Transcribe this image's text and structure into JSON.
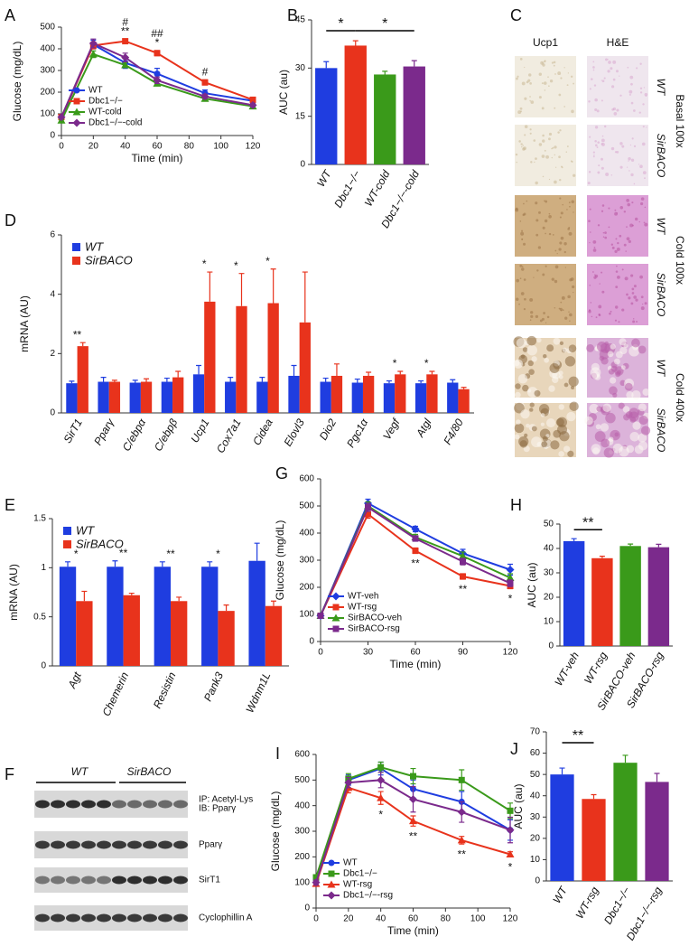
{
  "chart_data": [
    {
      "type": "line",
      "panel": "A",
      "ylabel": "Glucose (mg/dL)",
      "xlabel": "Time (min)",
      "x": [
        0,
        20,
        40,
        60,
        90,
        120
      ],
      "xlim": [
        0,
        120
      ],
      "xticks": [
        0,
        20,
        40,
        60,
        80,
        100,
        120
      ],
      "ylim": [
        0,
        500
      ],
      "yticks": [
        0,
        100,
        200,
        300,
        400,
        500
      ],
      "legend": "lower left",
      "significance_position": "above",
      "series": [
        {
          "name": "WT",
          "color": "#1f3de0",
          "marker": "circle",
          "values": [
            80,
            420,
            335,
            285,
            195,
            160
          ],
          "errors": [
            5,
            20,
            25,
            25,
            15,
            10
          ]
        },
        {
          "name": "Dbc1−/−",
          "color": "#e8331c",
          "marker": "square",
          "values": [
            85,
            415,
            435,
            380,
            245,
            165
          ],
          "errors": [
            5,
            15,
            10,
            12,
            12,
            10
          ]
        },
        {
          "name": "WT-cold",
          "color": "#3a9a1a",
          "marker": "triangle",
          "values": [
            70,
            375,
            325,
            240,
            170,
            135
          ],
          "errors": [
            5,
            15,
            12,
            10,
            8,
            8
          ]
        },
        {
          "name": "Dbc1−/−-cold",
          "color": "#7b2a8c",
          "marker": "diamond",
          "values": [
            85,
            425,
            360,
            255,
            180,
            140
          ],
          "errors": [
            5,
            20,
            20,
            15,
            10,
            8
          ]
        }
      ],
      "significance": [
        null,
        null,
        [
          "#",
          "**"
        ],
        [
          "##",
          "*"
        ],
        [
          "#"
        ],
        null
      ]
    },
    {
      "type": "bar",
      "panel": "B",
      "ylabel": "AUC (au)",
      "categories": [
        "WT",
        "Dbc1−/−",
        "WT-cold",
        "Dbc1−/−-cold"
      ],
      "ylim": [
        0,
        45
      ],
      "yticks": [
        0,
        15,
        30,
        45
      ],
      "series": [
        {
          "colors": [
            "#1f3de0",
            "#e8331c",
            "#3a9a1a",
            "#7b2a8c"
          ],
          "values": [
            30,
            37,
            28,
            30.5
          ],
          "errors": [
            2,
            1.5,
            1,
            1.8
          ]
        }
      ],
      "comparisons": [
        {
          "text": "*",
          "between": [
            "WT",
            "Dbc1−/−"
          ]
        },
        {
          "text": "*",
          "between": [
            "Dbc1−/−",
            "Dbc1−/−-cold"
          ]
        }
      ]
    },
    {
      "type": "bar",
      "panel": "D",
      "ylabel": "mRNA (AU)",
      "categories": [
        "SirT1",
        "Pparγ",
        "C/ebpα",
        "C/ebpβ",
        "Ucp1",
        "Cox7a1",
        "Cidea",
        "Elovl3",
        "Dio2",
        "Pgc1α",
        "Vegf",
        "Atgl",
        "F4/80"
      ],
      "ylim": [
        0,
        6
      ],
      "yticks": [
        0,
        2,
        4,
        6
      ],
      "legend": "upper left",
      "series": [
        {
          "name": "WT",
          "color": "#1f3de0",
          "values": [
            1,
            1.05,
            1.02,
            1.05,
            1.3,
            1.05,
            1.05,
            1.25,
            1.05,
            1.02,
            1,
            1,
            1.02
          ],
          "errors": [
            0.07,
            0.15,
            0.08,
            0.12,
            0.3,
            0.15,
            0.15,
            0.35,
            0.12,
            0.12,
            0.08,
            0.08,
            0.1
          ]
        },
        {
          "name": "SirBACO",
          "color": "#e8331c",
          "values": [
            2.25,
            1.05,
            1.05,
            1.2,
            3.75,
            3.6,
            3.7,
            3.05,
            1.25,
            1.25,
            1.3,
            1.3,
            0.8
          ],
          "errors": [
            0.12,
            0.05,
            0.1,
            0.2,
            1,
            1.1,
            1.15,
            1.7,
            0.4,
            0.12,
            0.1,
            0.1,
            0.06
          ]
        }
      ],
      "significance": [
        [
          "**"
        ],
        null,
        null,
        null,
        [
          "*"
        ],
        [
          "*"
        ],
        [
          "*"
        ],
        null,
        null,
        null,
        [
          "*"
        ],
        [
          "*"
        ],
        null
      ]
    },
    {
      "type": "bar",
      "panel": "E",
      "ylabel": "mRNA (AU)",
      "categories": [
        "Agt",
        "Chemerin",
        "Resistin",
        "Pank3",
        "Wdnm1L"
      ],
      "ylim": [
        0,
        1.5
      ],
      "yticks": [
        0,
        0.5,
        1,
        1.5
      ],
      "legend": "upper left",
      "series": [
        {
          "name": "WT",
          "color": "#1f3de0",
          "values": [
            1.01,
            1.01,
            1.01,
            1.01,
            1.07
          ],
          "errors": [
            0.05,
            0.06,
            0.05,
            0.05,
            0.18
          ]
        },
        {
          "name": "SirBACO",
          "color": "#e8331c",
          "values": [
            0.66,
            0.72,
            0.66,
            0.56,
            0.61
          ],
          "errors": [
            0.1,
            0.02,
            0.04,
            0.06,
            0.05
          ]
        }
      ],
      "significance": [
        [
          "*"
        ],
        [
          "**"
        ],
        [
          "**"
        ],
        [
          "*"
        ],
        null
      ]
    },
    {
      "type": "line",
      "panel": "G",
      "ylabel": "Glucose (mg/dL)",
      "xlabel": "Time (min)",
      "x": [
        0,
        30,
        60,
        90,
        120
      ],
      "xlim": [
        0,
        120
      ],
      "xticks": [
        0,
        30,
        60,
        90,
        120
      ],
      "ylim": [
        0,
        600
      ],
      "yticks": [
        0,
        100,
        200,
        300,
        400,
        500,
        600
      ],
      "legend": "lower left",
      "significance_position": "below",
      "series": [
        {
          "name": "WT-veh",
          "color": "#1f3de0",
          "marker": "diamond",
          "values": [
            95,
            510,
            415,
            325,
            265
          ],
          "errors": [
            8,
            15,
            10,
            15,
            20
          ]
        },
        {
          "name": "WT-rsg",
          "color": "#e8331c",
          "marker": "square",
          "values": [
            95,
            470,
            335,
            240,
            205
          ],
          "errors": [
            8,
            15,
            10,
            10,
            10
          ]
        },
        {
          "name": "SirBACO-veh",
          "color": "#3a9a1a",
          "marker": "triangle",
          "values": [
            95,
            500,
            385,
            315,
            235
          ],
          "errors": [
            8,
            15,
            10,
            15,
            15
          ]
        },
        {
          "name": "SirBACO-rsg",
          "color": "#7b2a8c",
          "marker": "square",
          "values": [
            95,
            495,
            380,
            295,
            215
          ],
          "errors": [
            8,
            15,
            10,
            12,
            12
          ]
        }
      ],
      "significance": [
        null,
        null,
        [
          "**"
        ],
        [
          "**"
        ],
        [
          "*"
        ]
      ]
    },
    {
      "type": "bar",
      "panel": "H",
      "ylabel": "AUC (au)",
      "categories": [
        "WT-veh",
        "WT-rsg",
        "SirBACO-veh",
        "SirBACO-rsg"
      ],
      "ylim": [
        0,
        50
      ],
      "yticks": [
        0,
        10,
        20,
        30,
        40,
        50
      ],
      "series": [
        {
          "colors": [
            "#1f3de0",
            "#e8331c",
            "#3a9a1a",
            "#7b2a8c"
          ],
          "values": [
            43,
            36,
            41,
            40.5
          ],
          "errors": [
            1,
            0.8,
            0.8,
            1.2
          ]
        }
      ],
      "comparisons": [
        {
          "text": "**",
          "between": [
            "WT-veh",
            "WT-rsg"
          ]
        }
      ]
    },
    {
      "type": "line",
      "panel": "I",
      "ylabel": "Glucose (mg/dL)",
      "xlabel": "Time (min)",
      "x": [
        0,
        20,
        40,
        60,
        90,
        120
      ],
      "xlim": [
        0,
        120
      ],
      "xticks": [
        0,
        20,
        40,
        60,
        80,
        100,
        120
      ],
      "ylim": [
        0,
        600
      ],
      "yticks": [
        0,
        100,
        200,
        300,
        400,
        500,
        600
      ],
      "legend": "lower left",
      "significance_position": "below",
      "series": [
        {
          "name": "WT",
          "color": "#1f3de0",
          "marker": "circle",
          "values": [
            110,
            500,
            545,
            465,
            415,
            305
          ],
          "errors": [
            10,
            20,
            25,
            35,
            40,
            40
          ]
        },
        {
          "name": "Dbc1−/−",
          "color": "#3a9a1a",
          "marker": "square",
          "values": [
            120,
            505,
            550,
            515,
            500,
            380
          ],
          "errors": [
            10,
            20,
            20,
            30,
            40,
            30
          ]
        },
        {
          "name": "WT-rsg",
          "color": "#e8331c",
          "marker": "triangle",
          "values": [
            95,
            470,
            430,
            340,
            265,
            210
          ],
          "errors": [
            10,
            20,
            25,
            20,
            15,
            10
          ]
        },
        {
          "name": "Dbc1−/−-rsg",
          "color": "#7b2a8c",
          "marker": "diamond",
          "values": [
            100,
            490,
            500,
            425,
            375,
            305
          ],
          "errors": [
            10,
            20,
            30,
            50,
            40,
            50
          ]
        }
      ],
      "significance": [
        null,
        null,
        [
          "*"
        ],
        [
          "**"
        ],
        [
          "**"
        ],
        [
          "*"
        ]
      ]
    },
    {
      "type": "bar",
      "panel": "J",
      "ylabel": "AUC (au)",
      "categories": [
        "WT",
        "WT-rsg",
        "Dbc1−/−",
        "Dbc1−/−-rsg"
      ],
      "ylim": [
        0,
        70
      ],
      "yticks": [
        0,
        10,
        20,
        30,
        40,
        50,
        60,
        70
      ],
      "series": [
        {
          "colors": [
            "#1f3de0",
            "#e8331c",
            "#3a9a1a",
            "#7b2a8c"
          ],
          "values": [
            50,
            38.5,
            55.5,
            46.5
          ],
          "errors": [
            3,
            2,
            3.5,
            4
          ]
        }
      ],
      "comparisons": [
        {
          "text": "**",
          "between": [
            "WT",
            "WT-rsg"
          ]
        }
      ]
    }
  ],
  "histology": {
    "panel": "C",
    "columns": [
      "Ucp1",
      "H&E"
    ],
    "groups": [
      {
        "name": "Basal 100x",
        "rows": [
          "WT",
          "SirBACO"
        ]
      },
      {
        "name": "Cold  100x",
        "rows": [
          "WT",
          "SirBACO"
        ]
      },
      {
        "name": "Cold 400x",
        "rows": [
          "WT",
          "SirBACO"
        ]
      }
    ]
  },
  "western_blot": {
    "panel": "F",
    "groups": [
      "WT",
      "SirBACO"
    ],
    "rows": [
      [
        "IP: Acetyl-Lys",
        "IB: Pparγ"
      ],
      [
        "Pparγ"
      ],
      [
        "SirT1"
      ],
      [
        "Cyclophillin A"
      ]
    ]
  }
}
